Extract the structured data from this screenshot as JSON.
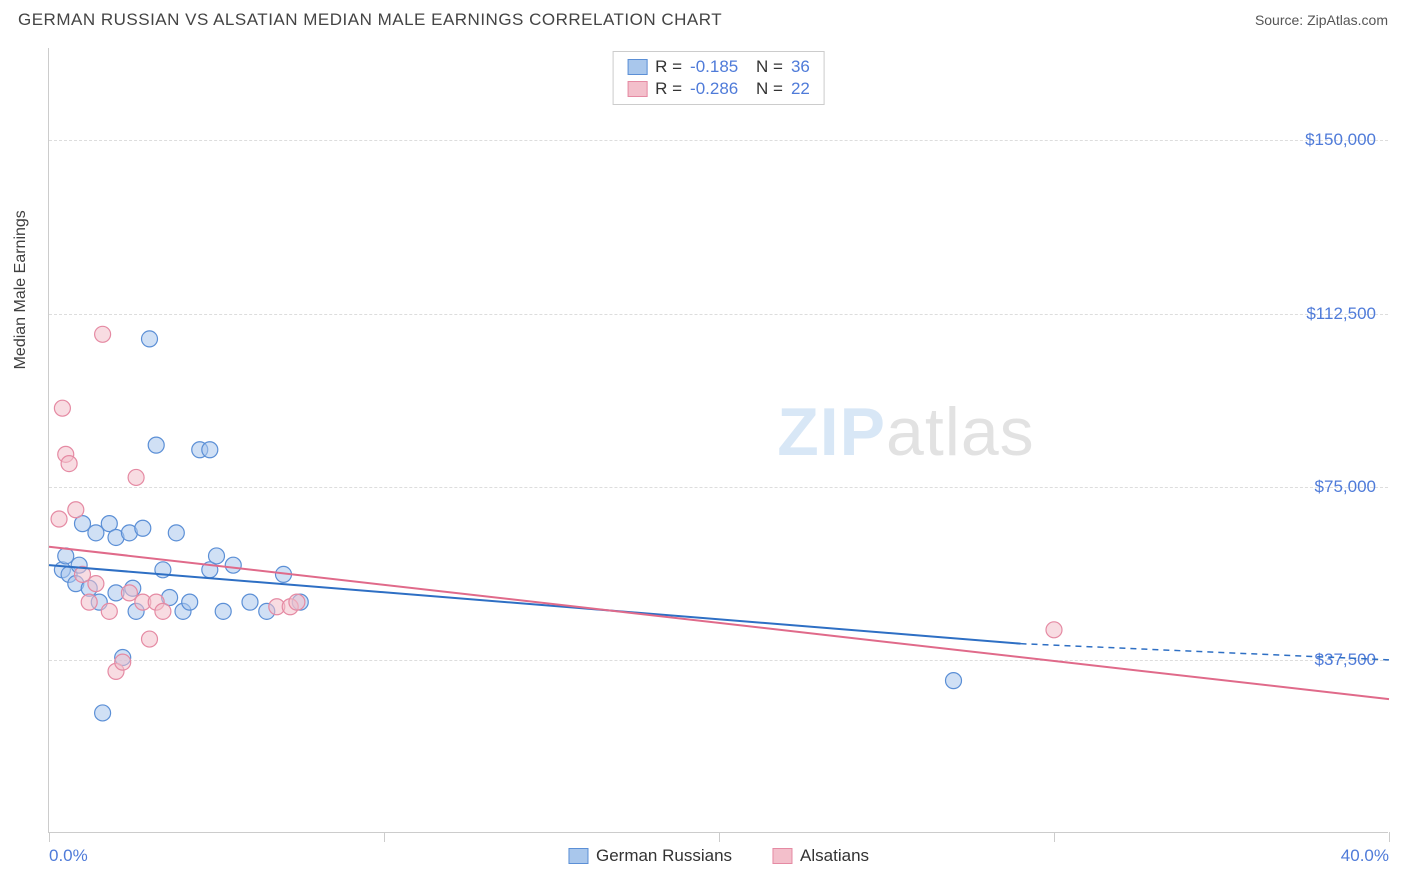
{
  "header": {
    "title": "GERMAN RUSSIAN VS ALSATIAN MEDIAN MALE EARNINGS CORRELATION CHART",
    "source_label": "Source: ",
    "source_value": "ZipAtlas.com"
  },
  "chart": {
    "type": "scatter",
    "background_color": "#ffffff",
    "grid_color": "#dddddd",
    "axis_color": "#cccccc",
    "ylabel": "Median Male Earnings",
    "ylabel_fontsize": 16,
    "ylabel_color": "#404040",
    "xlim": [
      0,
      40
    ],
    "ylim": [
      0,
      170000
    ],
    "y_ticks": [
      {
        "value": 37500,
        "label": "$37,500"
      },
      {
        "value": 75000,
        "label": "$75,000"
      },
      {
        "value": 112500,
        "label": "$112,500"
      },
      {
        "value": 150000,
        "label": "$150,000"
      }
    ],
    "x_ticks": [
      {
        "value": 0,
        "label": "0.0%"
      },
      {
        "value": 40,
        "label": "40.0%"
      }
    ],
    "x_tick_marks": [
      0,
      10,
      20,
      30,
      40
    ],
    "tick_label_color": "#4f7bd9",
    "tick_label_fontsize": 17,
    "marker_radius": 8,
    "marker_opacity": 0.55,
    "line_width": 2,
    "series": [
      {
        "name": "German Russians",
        "fill_color": "#a9c7ec",
        "stroke_color": "#5b8fd6",
        "line_color": "#2e6fc4",
        "r": -0.185,
        "n": 36,
        "trend": {
          "x0": 0,
          "y0": 58000,
          "x1": 29,
          "y1": 41000,
          "dash_x1": 40,
          "dash_y1": 37500
        },
        "points": [
          [
            0.4,
            57000
          ],
          [
            0.5,
            60000
          ],
          [
            0.6,
            56000
          ],
          [
            0.8,
            54000
          ],
          [
            0.9,
            58000
          ],
          [
            1.0,
            67000
          ],
          [
            1.2,
            53000
          ],
          [
            1.4,
            65000
          ],
          [
            1.5,
            50000
          ],
          [
            1.6,
            26000
          ],
          [
            1.8,
            67000
          ],
          [
            2.0,
            52000
          ],
          [
            2.0,
            64000
          ],
          [
            2.2,
            38000
          ],
          [
            2.4,
            65000
          ],
          [
            2.5,
            53000
          ],
          [
            2.6,
            48000
          ],
          [
            2.8,
            66000
          ],
          [
            3.0,
            107000
          ],
          [
            3.2,
            84000
          ],
          [
            3.4,
            57000
          ],
          [
            3.6,
            51000
          ],
          [
            3.8,
            65000
          ],
          [
            4.0,
            48000
          ],
          [
            4.2,
            50000
          ],
          [
            4.5,
            83000
          ],
          [
            4.8,
            57000
          ],
          [
            4.8,
            83000
          ],
          [
            5.0,
            60000
          ],
          [
            5.2,
            48000
          ],
          [
            5.5,
            58000
          ],
          [
            6.0,
            50000
          ],
          [
            6.5,
            48000
          ],
          [
            7.0,
            56000
          ],
          [
            7.5,
            50000
          ],
          [
            27.0,
            33000
          ]
        ]
      },
      {
        "name": "Alsatians",
        "fill_color": "#f3bfcb",
        "stroke_color": "#e58aa3",
        "line_color": "#e06a8a",
        "r": -0.286,
        "n": 22,
        "trend": {
          "x0": 0,
          "y0": 62000,
          "x1": 40,
          "y1": 29000
        },
        "points": [
          [
            0.3,
            68000
          ],
          [
            0.4,
            92000
          ],
          [
            0.5,
            82000
          ],
          [
            0.6,
            80000
          ],
          [
            0.8,
            70000
          ],
          [
            1.0,
            56000
          ],
          [
            1.2,
            50000
          ],
          [
            1.4,
            54000
          ],
          [
            1.6,
            108000
          ],
          [
            1.8,
            48000
          ],
          [
            2.0,
            35000
          ],
          [
            2.2,
            37000
          ],
          [
            2.4,
            52000
          ],
          [
            2.6,
            77000
          ],
          [
            2.8,
            50000
          ],
          [
            3.0,
            42000
          ],
          [
            3.2,
            50000
          ],
          [
            3.4,
            48000
          ],
          [
            6.8,
            49000
          ],
          [
            7.2,
            49000
          ],
          [
            7.4,
            50000
          ],
          [
            30.0,
            44000
          ]
        ]
      }
    ],
    "watermark": {
      "zip": "ZIP",
      "atlas": "atlas"
    }
  },
  "legend_top": {
    "r_label": "R =",
    "n_label": "N ="
  },
  "legend_bottom": [
    {
      "series": 0
    },
    {
      "series": 1
    }
  ]
}
